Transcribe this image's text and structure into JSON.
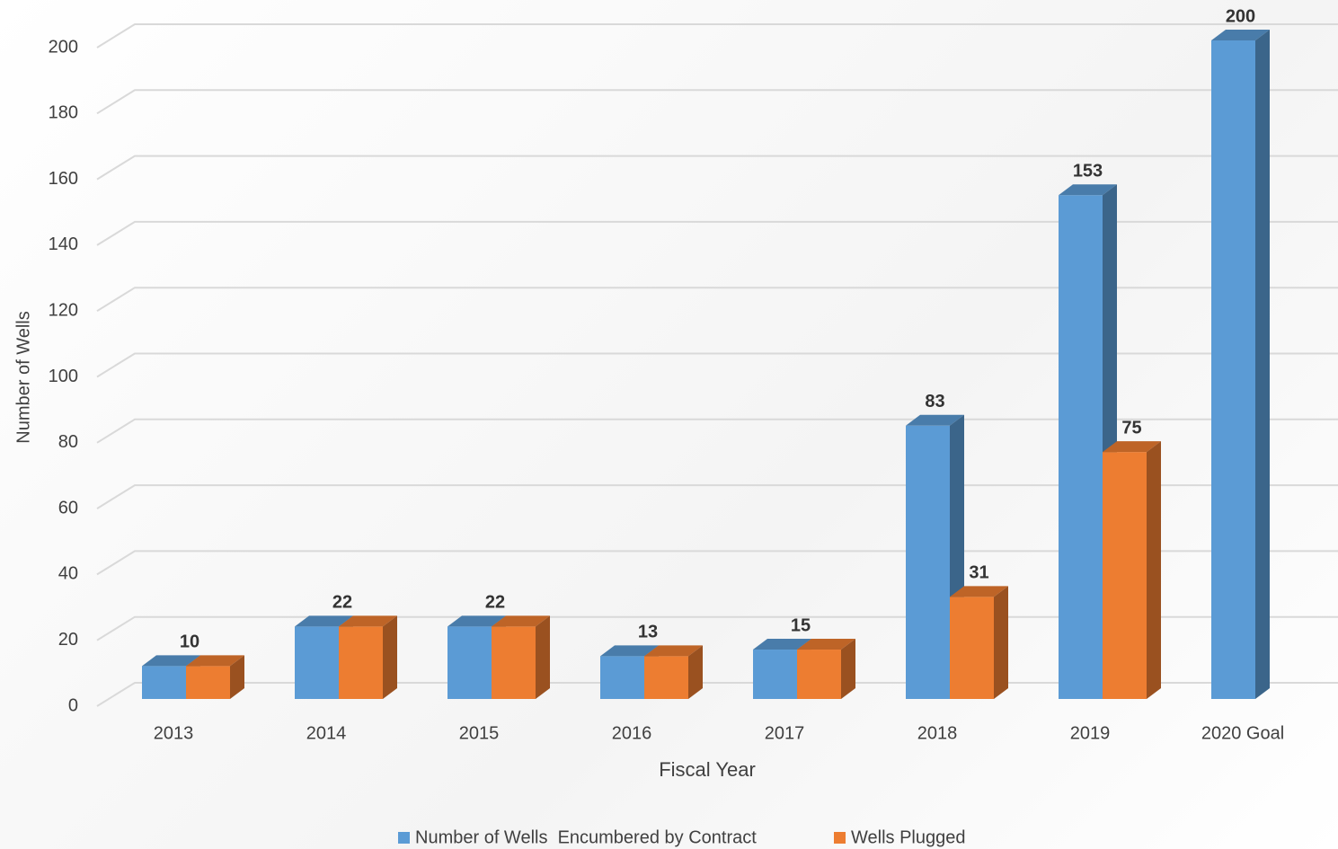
{
  "chart_data": {
    "type": "bar3d",
    "x_label": "Fiscal Year",
    "y_label": "Number of Wells",
    "categories": [
      "2013",
      "2014",
      "2015",
      "2016",
      "2017",
      "2018",
      "2019",
      "2020 Goal"
    ],
    "series": [
      {
        "name": "Number of Wells  Encumbered by Contract",
        "color": "#5b9bd5",
        "values": [
          10,
          22,
          22,
          13,
          15,
          83,
          153,
          200
        ],
        "value_labels": [
          null,
          null,
          null,
          null,
          null,
          "83",
          "153",
          "200"
        ]
      },
      {
        "name": "Wells Plugged",
        "color": "#ed7d31",
        "values": [
          10,
          22,
          22,
          13,
          15,
          31,
          75,
          null
        ],
        "value_labels": [
          "10",
          "22",
          "22",
          "13",
          "15",
          "31",
          "75",
          null
        ]
      }
    ],
    "ylim": [
      0,
      200
    ],
    "yticks": [
      0,
      20,
      40,
      60,
      80,
      100,
      120,
      140,
      160,
      180,
      200
    ],
    "grid": true
  }
}
